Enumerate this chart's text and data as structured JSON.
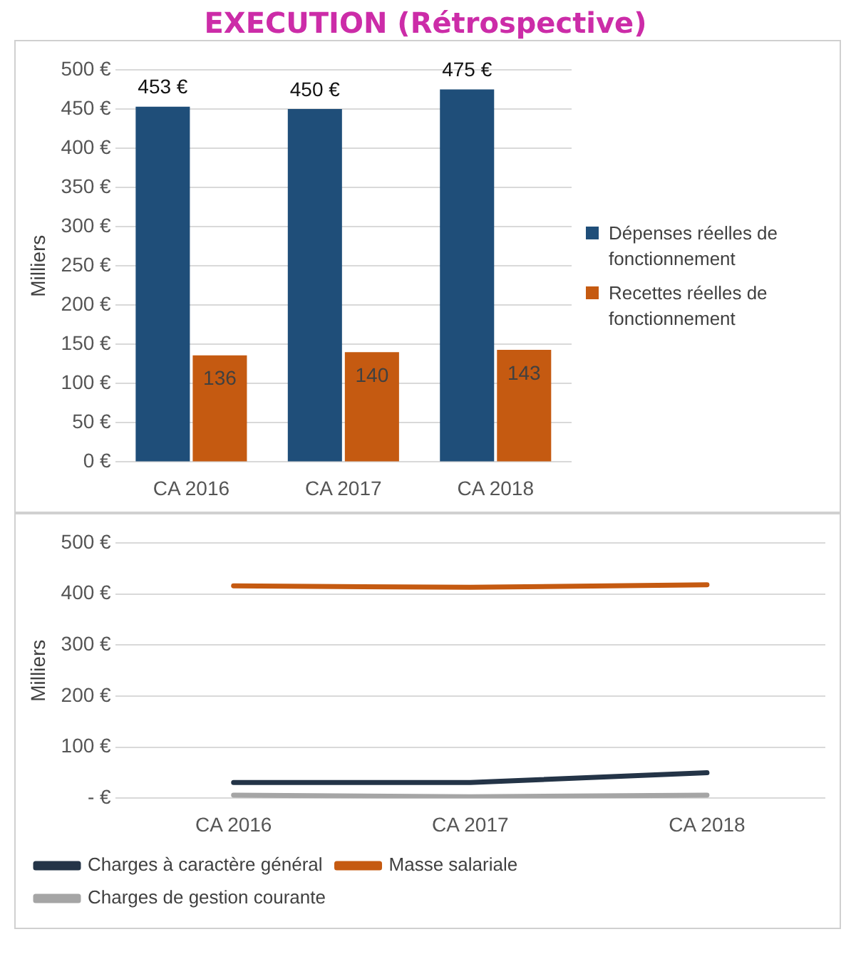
{
  "chart_data": [
    {
      "type": "bar",
      "title": "EXECUTION (Rétrospective)",
      "ylabel": "Milliers",
      "categories": [
        "CA 2016",
        "CA 2017",
        "CA 2018"
      ],
      "series": [
        {
          "name": "Dépenses réelles de fonctionnement",
          "color": "#1f4e79",
          "values": [
            453,
            450,
            475
          ],
          "value_labels": [
            "453 €",
            "450 €",
            "475 €"
          ]
        },
        {
          "name": "Recettes réelles de fonctionnement",
          "color": "#c55a11",
          "values": [
            136,
            140,
            143
          ],
          "value_labels": [
            "136",
            "140",
            "143"
          ]
        }
      ],
      "ylim": [
        0,
        500
      ],
      "yticks": [
        {
          "value": 0,
          "label": "0 €"
        },
        {
          "value": 50,
          "label": "50 €"
        },
        {
          "value": 100,
          "label": "100 €"
        },
        {
          "value": 150,
          "label": "150 €"
        },
        {
          "value": 200,
          "label": "200 €"
        },
        {
          "value": 250,
          "label": "250 €"
        },
        {
          "value": 300,
          "label": "300 €"
        },
        {
          "value": 350,
          "label": "350 €"
        },
        {
          "value": 400,
          "label": "400 €"
        },
        {
          "value": 450,
          "label": "450 €"
        },
        {
          "value": 500,
          "label": "500 €"
        }
      ],
      "grid": "y",
      "legend": "right"
    },
    {
      "type": "line",
      "ylabel": "Milliers",
      "categories": [
        "CA 2016",
        "CA 2017",
        "CA 2018"
      ],
      "series": [
        {
          "name": "Charges à caractère général",
          "color": "#243447",
          "values": [
            31,
            31,
            50
          ]
        },
        {
          "name": "Masse salariale",
          "color": "#c55a11",
          "values": [
            416,
            413,
            418
          ]
        },
        {
          "name": "Charges de gestion courante",
          "color": "#a5a5a5",
          "values": [
            6,
            3,
            6
          ]
        }
      ],
      "ylim": [
        0,
        500
      ],
      "yticks": [
        {
          "value": 0,
          "label": "- €"
        },
        {
          "value": 100,
          "label": "100 €"
        },
        {
          "value": 200,
          "label": "200 €"
        },
        {
          "value": 300,
          "label": "300 €"
        },
        {
          "value": 400,
          "label": "400 €"
        },
        {
          "value": 500,
          "label": "500 €"
        }
      ],
      "grid": "y",
      "legend": "bottom",
      "marker": "none",
      "line_style": "solid"
    }
  ]
}
